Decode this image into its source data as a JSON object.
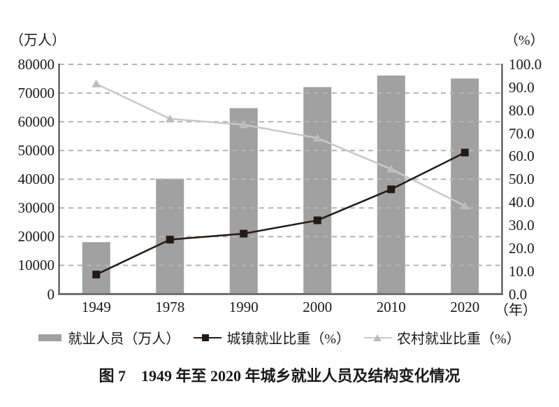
{
  "figure": {
    "left_axis_unit": "（万人）",
    "right_axis_unit": "（%）",
    "x_axis_unit": "（年）",
    "caption": "图 7　1949 年至 2020 年城乡就业人员及结构变化情况"
  },
  "legend": {
    "items": [
      {
        "label": "就业人员（万人）",
        "icon": "bar-swatch"
      },
      {
        "label": "城镇就业比重（%）",
        "icon": "line-with-square-marker"
      },
      {
        "label": "农村就业比重（%）",
        "icon": "line-with-triangle-marker"
      }
    ]
  },
  "colors": {
    "bar": "#a1a1a1",
    "urban_line": "#241a14",
    "rural_line": "#c9c9c9",
    "rural_marker": "#bdbdbd",
    "gridline": "#b5b5b5",
    "axis": "#3d3d3d",
    "baseline": "#6f6f6f",
    "text": "#1a1a1a"
  },
  "chart_data": {
    "type": "combo-bar-line",
    "title": "图 7　1949 年至 2020 年城乡就业人员及结构变化情况",
    "categories": [
      "1949",
      "1978",
      "1990",
      "2000",
      "2010",
      "2020"
    ],
    "series": [
      {
        "name": "就业人员（万人）",
        "type": "bar",
        "axis": "left",
        "values": [
          18082,
          40152,
          64749,
          72085,
          76105,
          75064
        ]
      },
      {
        "name": "城镇就业比重（%）",
        "type": "line",
        "marker": "square",
        "axis": "right",
        "values": [
          8.5,
          23.7,
          26.3,
          32.1,
          45.6,
          61.6
        ]
      },
      {
        "name": "农村就业比重（%）",
        "type": "line",
        "marker": "triangle",
        "axis": "right",
        "values": [
          91.5,
          76.3,
          73.7,
          67.9,
          54.4,
          38.4
        ]
      }
    ],
    "left_axis": {
      "unit": "（万人）",
      "min": 0,
      "max": 80000,
      "tick_step": 10000,
      "tick_labels": [
        "80000",
        "70000",
        "60000",
        "50000",
        "40000",
        "30000",
        "20000",
        "10000",
        "0"
      ]
    },
    "right_axis": {
      "unit": "（%）",
      "min": 0,
      "max": 100,
      "tick_step": 10,
      "tick_labels": [
        "100.0",
        "90.0",
        "80.0",
        "70.0",
        "60.0",
        "50.0",
        "40.0",
        "30.0",
        "20.0",
        "10.0",
        "0.0"
      ]
    },
    "x_axis": {
      "unit": "（年）"
    },
    "grid": "horizontal-dashed",
    "legend_position": "bottom"
  }
}
